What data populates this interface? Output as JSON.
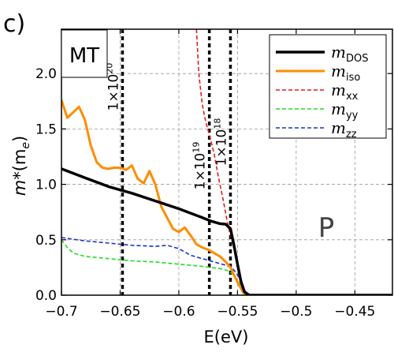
{
  "panel_label": "c)",
  "chart_data": {
    "type": "line",
    "title": "",
    "xlabel": "E(eV)",
    "ylabel_main": "m*",
    "ylabel_unit": "(m",
    "ylabel_unit_sub": "e",
    "ylabel_close": ")",
    "xlim": [
      -0.7,
      -0.418
    ],
    "ylim": [
      0.0,
      2.4
    ],
    "x_ticks": [
      -0.7,
      -0.65,
      -0.6,
      -0.55,
      -0.5,
      -0.45
    ],
    "x_tick_labels": [
      "−0.7",
      "−0.65",
      "−0.6",
      "−0.55",
      "−0.5",
      "−0.45"
    ],
    "y_ticks": [
      0.0,
      0.5,
      1.0,
      1.5,
      2.0
    ],
    "y_tick_labels": [
      "0.0",
      "0.5",
      "1.0",
      "1.5",
      "2.0"
    ],
    "grid": true,
    "legend_position": "top-right",
    "series": [
      {
        "key": "dos",
        "name": "m",
        "sub": "DOS",
        "color": "#000000",
        "width": 3.5,
        "dash": "",
        "x": [
          -0.7,
          -0.68,
          -0.66,
          -0.64,
          -0.62,
          -0.6,
          -0.58,
          -0.573,
          -0.565,
          -0.56,
          -0.556,
          -0.553,
          -0.55,
          -0.547,
          -0.544,
          -0.54,
          -0.53,
          -0.5,
          -0.45,
          -0.418
        ],
        "y": [
          1.14,
          1.06,
          0.98,
          0.92,
          0.85,
          0.78,
          0.7,
          0.67,
          0.645,
          0.64,
          0.6,
          0.45,
          0.28,
          0.12,
          0.03,
          0.0,
          0.0,
          0.0,
          0.0,
          0.0
        ]
      },
      {
        "key": "iso",
        "name": "m",
        "sub": "iso",
        "color": "#ff8c00",
        "width": 3,
        "dash": "",
        "x": [
          -0.7,
          -0.695,
          -0.69,
          -0.685,
          -0.68,
          -0.675,
          -0.67,
          -0.665,
          -0.66,
          -0.655,
          -0.65,
          -0.645,
          -0.64,
          -0.635,
          -0.63,
          -0.625,
          -0.62,
          -0.615,
          -0.61,
          -0.605,
          -0.6,
          -0.595,
          -0.59,
          -0.585,
          -0.58,
          -0.575,
          -0.57,
          -0.565,
          -0.56,
          -0.556,
          -0.552,
          -0.548,
          -0.545,
          -0.541,
          -0.535,
          -0.5,
          -0.45,
          -0.418
        ],
        "y": [
          1.76,
          1.6,
          1.65,
          1.7,
          1.58,
          1.35,
          1.2,
          1.15,
          1.14,
          1.15,
          1.15,
          1.13,
          1.17,
          1.05,
          1.01,
          1.12,
          1.0,
          0.8,
          0.7,
          0.6,
          0.57,
          0.61,
          0.54,
          0.46,
          0.43,
          0.41,
          0.38,
          0.35,
          0.3,
          0.25,
          0.16,
          0.08,
          0.02,
          0.0,
          0.0,
          0.0,
          0.0,
          0.0
        ]
      },
      {
        "key": "xx",
        "name": "m",
        "sub": "xx",
        "color": "#e41a1c",
        "width": 1.6,
        "dash": "5,3",
        "x": [
          -0.585,
          -0.583,
          -0.58,
          -0.577,
          -0.574,
          -0.57,
          -0.566,
          -0.562,
          -0.558,
          -0.555,
          -0.552,
          -0.55,
          -0.548,
          -0.546,
          -0.544,
          -0.541,
          -0.535,
          -0.5,
          -0.45,
          -0.418
        ],
        "y": [
          2.4,
          2.0,
          1.72,
          1.56,
          1.45,
          1.28,
          1.05,
          0.85,
          0.62,
          0.5,
          0.38,
          0.28,
          0.17,
          0.08,
          0.03,
          0.0,
          0.0,
          0.0,
          0.0,
          0.0
        ]
      },
      {
        "key": "yy",
        "name": "m",
        "sub": "yy",
        "color": "#22dd22",
        "width": 1.6,
        "dash": "5,3",
        "x": [
          -0.7,
          -0.695,
          -0.69,
          -0.68,
          -0.66,
          -0.64,
          -0.62,
          -0.6,
          -0.58,
          -0.565,
          -0.558,
          -0.553,
          -0.548,
          -0.544,
          -0.541,
          -0.535,
          -0.5,
          -0.45,
          -0.418
        ],
        "y": [
          0.5,
          0.43,
          0.38,
          0.35,
          0.33,
          0.31,
          0.3,
          0.28,
          0.26,
          0.24,
          0.22,
          0.18,
          0.1,
          0.03,
          0.0,
          0.0,
          0.0,
          0.0,
          0.0
        ]
      },
      {
        "key": "zz",
        "name": "m",
        "sub": "zz",
        "color": "#1a33cc",
        "width": 1.6,
        "dash": "5,3",
        "x": [
          -0.7,
          -0.68,
          -0.66,
          -0.64,
          -0.62,
          -0.61,
          -0.6,
          -0.59,
          -0.58,
          -0.57,
          -0.56,
          -0.555,
          -0.551,
          -0.547,
          -0.544,
          -0.541,
          -0.535,
          -0.5,
          -0.45,
          -0.418
        ],
        "y": [
          0.52,
          0.49,
          0.47,
          0.45,
          0.44,
          0.45,
          0.42,
          0.36,
          0.33,
          0.3,
          0.27,
          0.25,
          0.2,
          0.12,
          0.04,
          0.0,
          0.0,
          0.0,
          0.0,
          0.0
        ]
      }
    ],
    "vlines": [
      {
        "x": -0.648,
        "label_base": "1×10",
        "label_exp": "20"
      },
      {
        "x": -0.574,
        "label_base": "1×10",
        "label_exp": "19"
      },
      {
        "x": -0.556,
        "label_base": "1×10",
        "label_exp": "18"
      }
    ],
    "annotations": {
      "mt": "MT",
      "p": "P"
    }
  }
}
